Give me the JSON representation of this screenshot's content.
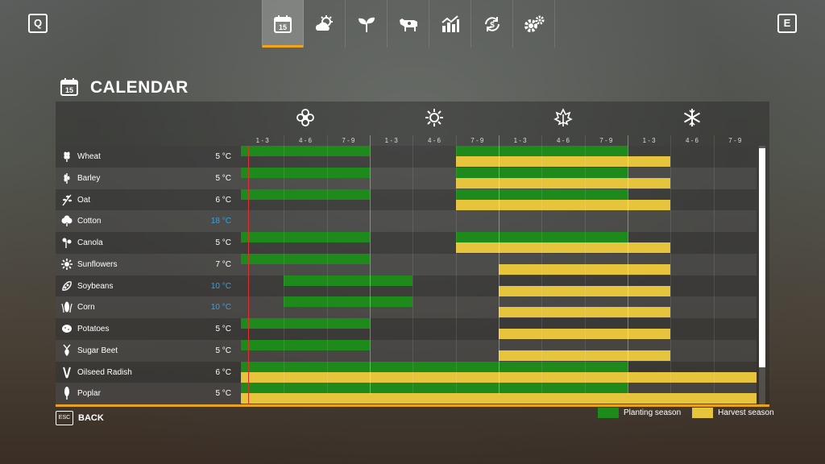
{
  "keys": {
    "left": "Q",
    "right": "E",
    "back": "ESC"
  },
  "tabs": [
    {
      "name": "calendar-icon",
      "badge": "15",
      "active": true
    },
    {
      "name": "weather-icon",
      "active": false
    },
    {
      "name": "sprout-icon",
      "active": false
    },
    {
      "name": "cow-icon",
      "active": false
    },
    {
      "name": "statistics-icon",
      "active": false
    },
    {
      "name": "finance-icon",
      "active": false
    },
    {
      "name": "settings-icon",
      "active": false
    }
  ],
  "page": {
    "title": "CALENDAR",
    "title_badge": "15",
    "back_label": "BACK"
  },
  "seasons": [
    {
      "icon": "flower-icon"
    },
    {
      "icon": "sun-icon"
    },
    {
      "icon": "leaf-icon"
    },
    {
      "icon": "snowflake-icon"
    }
  ],
  "periods": [
    "1 - 3",
    "4 - 6",
    "7 - 9",
    "1 - 3",
    "4 - 6",
    "7 - 9",
    "1 - 3",
    "4 - 6",
    "7 - 9",
    "1 - 3",
    "4 - 6",
    "7 - 9"
  ],
  "crops": [
    {
      "name": "Wheat",
      "temp": "5 °C",
      "warm": false,
      "icon": "wheat-icon",
      "plant": [
        [
          0,
          3
        ],
        [
          5,
          9
        ]
      ],
      "harvest": [
        [
          5,
          10
        ]
      ]
    },
    {
      "name": "Barley",
      "temp": "5 °C",
      "warm": false,
      "icon": "barley-icon",
      "plant": [
        [
          0,
          3
        ],
        [
          5,
          9
        ]
      ],
      "harvest": [
        [
          5,
          10
        ]
      ]
    },
    {
      "name": "Oat",
      "temp": "6 °C",
      "warm": false,
      "icon": "oat-icon",
      "plant": [
        [
          0,
          3
        ],
        [
          5,
          9
        ]
      ],
      "harvest": [
        [
          5,
          10
        ]
      ]
    },
    {
      "name": "Cotton",
      "temp": "18 °C",
      "warm": true,
      "icon": "cotton-icon",
      "plant": [],
      "harvest": []
    },
    {
      "name": "Canola",
      "temp": "5 °C",
      "warm": false,
      "icon": "canola-icon",
      "plant": [
        [
          0,
          3
        ],
        [
          5,
          9
        ]
      ],
      "harvest": [
        [
          5,
          10
        ]
      ]
    },
    {
      "name": "Sunflowers",
      "temp": "7 °C",
      "warm": false,
      "icon": "sunflower-icon",
      "plant": [
        [
          0,
          3
        ]
      ],
      "harvest": [
        [
          6,
          10
        ]
      ]
    },
    {
      "name": "Soybeans",
      "temp": "10 °C",
      "warm": true,
      "icon": "soybean-icon",
      "plant": [
        [
          1,
          4
        ]
      ],
      "harvest": [
        [
          6,
          10
        ]
      ]
    },
    {
      "name": "Corn",
      "temp": "10 °C",
      "warm": true,
      "icon": "corn-icon",
      "plant": [
        [
          1,
          4
        ]
      ],
      "harvest": [
        [
          6,
          10
        ]
      ]
    },
    {
      "name": "Potatoes",
      "temp": "5 °C",
      "warm": false,
      "icon": "potato-icon",
      "plant": [
        [
          0,
          3
        ]
      ],
      "harvest": [
        [
          6,
          10
        ]
      ]
    },
    {
      "name": "Sugar Beet",
      "temp": "5 °C",
      "warm": false,
      "icon": "sugarbeet-icon",
      "plant": [
        [
          0,
          3
        ]
      ],
      "harvest": [
        [
          6,
          10
        ]
      ]
    },
    {
      "name": "Oilseed Radish",
      "temp": "6 °C",
      "warm": false,
      "icon": "radish-icon",
      "plant": [
        [
          0,
          9
        ]
      ],
      "harvest": [
        [
          0,
          12
        ]
      ]
    },
    {
      "name": "Poplar",
      "temp": "5 °C",
      "warm": false,
      "icon": "poplar-icon",
      "plant": [
        [
          0,
          9
        ]
      ],
      "harvest": [
        [
          0,
          12
        ]
      ]
    }
  ],
  "legend": {
    "planting": "Planting season",
    "harvest": "Harvest season"
  },
  "colors": {
    "planting": "#1f8a1c",
    "harvest": "#e6c43b",
    "accent": "#f2a51a",
    "warm_temp": "#3aa0e0",
    "current": "#e0302a"
  }
}
